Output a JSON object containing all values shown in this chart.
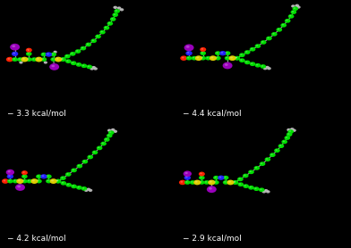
{
  "background_color": "#000000",
  "text_color": "#ffffff",
  "figsize": [
    3.92,
    2.78
  ],
  "dpi": 100,
  "panels": [
    {
      "label": "− 3.3 kcal/mol"
    },
    {
      "label": "− 4.4 kcal/mol"
    },
    {
      "label": "− 4.2 kcal/mol"
    },
    {
      "label": "− 2.9 kcal/mol"
    }
  ],
  "font_size": 6.5,
  "C": "#00dd00",
  "H": "#b0b0b0",
  "N": "#2222ff",
  "O": "#ff2200",
  "S": "#ddcc00",
  "I": "#9900bb",
  "bond": "#999999"
}
